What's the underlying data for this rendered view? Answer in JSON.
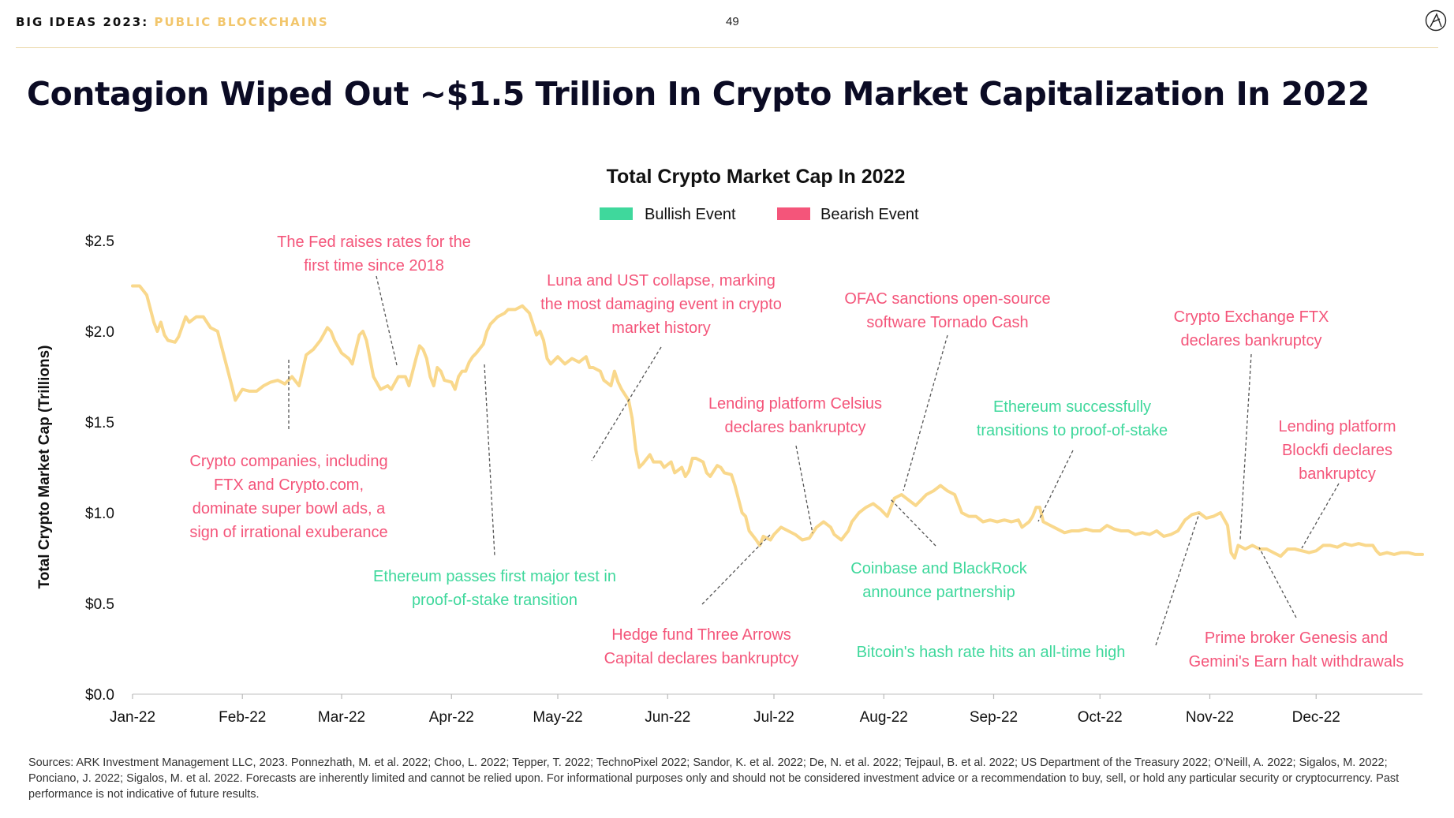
{
  "header": {
    "prefix": "BIG IDEAS 2023:",
    "section": "PUBLIC BLOCKCHAINS",
    "page_number": "49"
  },
  "main_title": "Contagion Wiped Out ~$1.5 Trillion In Crypto Market Capitalization In 2022",
  "colors": {
    "line": "#f9d88c",
    "bullish": "#3fd89c",
    "bearish": "#f4557a",
    "accent": "#f2c66c"
  },
  "chart_data": {
    "type": "line",
    "title": "Total Crypto Market Cap In 2022",
    "xlabel": "",
    "ylabel": "Total Crypto Market Cap (Trillions)",
    "ylim": [
      0,
      2.5
    ],
    "yticks": [
      {
        "value": 0,
        "label": "$0.0"
      },
      {
        "value": 0.5,
        "label": "$0.5"
      },
      {
        "value": 1.0,
        "label": "$1.0"
      },
      {
        "value": 1.5,
        "label": "$1.5"
      },
      {
        "value": 2.0,
        "label": "$2.0"
      },
      {
        "value": 2.5,
        "label": "$2.5"
      }
    ],
    "xticks": [
      {
        "day": 0,
        "label": "Jan-22"
      },
      {
        "day": 31,
        "label": "Feb-22"
      },
      {
        "day": 59,
        "label": "Mar-22"
      },
      {
        "day": 90,
        "label": "Apr-22"
      },
      {
        "day": 120,
        "label": "May-22"
      },
      {
        "day": 151,
        "label": "Jun-22"
      },
      {
        "day": 181,
        "label": "Jul-22"
      },
      {
        "day": 212,
        "label": "Aug-22"
      },
      {
        "day": 243,
        "label": "Sep-22"
      },
      {
        "day": 273,
        "label": "Oct-22"
      },
      {
        "day": 304,
        "label": "Nov-22"
      },
      {
        "day": 334,
        "label": "Dec-22"
      }
    ],
    "xlim": [
      0,
      364
    ],
    "legend": [
      {
        "label": "Bullish Event",
        "kind": "bullish"
      },
      {
        "label": "Bearish Event",
        "kind": "bearish"
      }
    ],
    "series": [
      {
        "name": "Total Crypto Market Cap",
        "points": [
          [
            0,
            2.25
          ],
          [
            2,
            2.25
          ],
          [
            4,
            2.2
          ],
          [
            6,
            2.05
          ],
          [
            7,
            2.0
          ],
          [
            8,
            2.05
          ],
          [
            9,
            1.98
          ],
          [
            10,
            1.95
          ],
          [
            12,
            1.94
          ],
          [
            13,
            1.97
          ],
          [
            15,
            2.08
          ],
          [
            16,
            2.05
          ],
          [
            18,
            2.08
          ],
          [
            20,
            2.08
          ],
          [
            22,
            2.02
          ],
          [
            24,
            2.0
          ],
          [
            26,
            1.85
          ],
          [
            28,
            1.7
          ],
          [
            29,
            1.62
          ],
          [
            31,
            1.68
          ],
          [
            33,
            1.67
          ],
          [
            35,
            1.67
          ],
          [
            37,
            1.7
          ],
          [
            39,
            1.72
          ],
          [
            41,
            1.73
          ],
          [
            43,
            1.71
          ],
          [
            45,
            1.75
          ],
          [
            47,
            1.7
          ],
          [
            49,
            1.87
          ],
          [
            51,
            1.9
          ],
          [
            53,
            1.95
          ],
          [
            55,
            2.02
          ],
          [
            56,
            2.0
          ],
          [
            57,
            1.95
          ],
          [
            59,
            1.88
          ],
          [
            61,
            1.85
          ],
          [
            62,
            1.82
          ],
          [
            63,
            1.9
          ],
          [
            64,
            1.98
          ],
          [
            65,
            2.0
          ],
          [
            66,
            1.95
          ],
          [
            68,
            1.75
          ],
          [
            70,
            1.68
          ],
          [
            72,
            1.7
          ],
          [
            73,
            1.68
          ],
          [
            75,
            1.75
          ],
          [
            77,
            1.75
          ],
          [
            78,
            1.7
          ],
          [
            80,
            1.85
          ],
          [
            81,
            1.92
          ],
          [
            82,
            1.9
          ],
          [
            83,
            1.85
          ],
          [
            84,
            1.75
          ],
          [
            85,
            1.7
          ],
          [
            86,
            1.8
          ],
          [
            87,
            1.78
          ],
          [
            88,
            1.73
          ],
          [
            90,
            1.72
          ],
          [
            91,
            1.68
          ],
          [
            92,
            1.75
          ],
          [
            93,
            1.78
          ],
          [
            94,
            1.78
          ],
          [
            95,
            1.83
          ],
          [
            96,
            1.86
          ],
          [
            97,
            1.88
          ],
          [
            99,
            1.93
          ],
          [
            100,
            2.0
          ],
          [
            101,
            2.04
          ],
          [
            103,
            2.08
          ],
          [
            105,
            2.1
          ],
          [
            106,
            2.12
          ],
          [
            108,
            2.12
          ],
          [
            110,
            2.14
          ],
          [
            112,
            2.1
          ],
          [
            114,
            1.98
          ],
          [
            115,
            2.0
          ],
          [
            116,
            1.95
          ],
          [
            117,
            1.85
          ],
          [
            118,
            1.82
          ],
          [
            120,
            1.86
          ],
          [
            122,
            1.82
          ],
          [
            124,
            1.85
          ],
          [
            126,
            1.83
          ],
          [
            128,
            1.86
          ],
          [
            129,
            1.8
          ],
          [
            130,
            1.8
          ],
          [
            132,
            1.78
          ],
          [
            133,
            1.73
          ],
          [
            135,
            1.7
          ],
          [
            136,
            1.78
          ],
          [
            137,
            1.72
          ],
          [
            138,
            1.68
          ],
          [
            140,
            1.62
          ],
          [
            141,
            1.52
          ],
          [
            142,
            1.35
          ],
          [
            143,
            1.25
          ],
          [
            144,
            1.27
          ],
          [
            146,
            1.32
          ],
          [
            147,
            1.28
          ],
          [
            149,
            1.28
          ],
          [
            150,
            1.25
          ],
          [
            152,
            1.28
          ],
          [
            153,
            1.22
          ],
          [
            155,
            1.25
          ],
          [
            156,
            1.2
          ],
          [
            157,
            1.23
          ],
          [
            158,
            1.3
          ],
          [
            159,
            1.3
          ],
          [
            161,
            1.28
          ],
          [
            162,
            1.22
          ],
          [
            163,
            1.2
          ],
          [
            165,
            1.26
          ],
          [
            166,
            1.25
          ],
          [
            167,
            1.22
          ],
          [
            169,
            1.21
          ],
          [
            170,
            1.15
          ],
          [
            172,
            1.0
          ],
          [
            173,
            0.98
          ],
          [
            174,
            0.9
          ],
          [
            176,
            0.85
          ],
          [
            177,
            0.82
          ],
          [
            178,
            0.87
          ],
          [
            180,
            0.85
          ],
          [
            181,
            0.88
          ],
          [
            183,
            0.92
          ],
          [
            185,
            0.9
          ],
          [
            187,
            0.88
          ],
          [
            189,
            0.85
          ],
          [
            191,
            0.86
          ],
          [
            193,
            0.92
          ],
          [
            195,
            0.95
          ],
          [
            197,
            0.92
          ],
          [
            198,
            0.88
          ],
          [
            200,
            0.85
          ],
          [
            202,
            0.9
          ],
          [
            203,
            0.95
          ],
          [
            205,
            1.0
          ],
          [
            207,
            1.03
          ],
          [
            209,
            1.05
          ],
          [
            211,
            1.02
          ],
          [
            213,
            0.98
          ],
          [
            215,
            1.08
          ],
          [
            217,
            1.1
          ],
          [
            219,
            1.07
          ],
          [
            221,
            1.04
          ],
          [
            223,
            1.08
          ],
          [
            224,
            1.1
          ],
          [
            226,
            1.12
          ],
          [
            228,
            1.15
          ],
          [
            230,
            1.12
          ],
          [
            232,
            1.1
          ],
          [
            234,
            1.0
          ],
          [
            236,
            0.98
          ],
          [
            238,
            0.98
          ],
          [
            240,
            0.95
          ],
          [
            242,
            0.96
          ],
          [
            244,
            0.95
          ],
          [
            246,
            0.96
          ],
          [
            248,
            0.95
          ],
          [
            250,
            0.96
          ],
          [
            251,
            0.92
          ],
          [
            253,
            0.95
          ],
          [
            254,
            0.98
          ],
          [
            255,
            1.03
          ],
          [
            256,
            1.03
          ],
          [
            257,
            0.95
          ],
          [
            259,
            0.93
          ],
          [
            261,
            0.91
          ],
          [
            263,
            0.89
          ],
          [
            265,
            0.9
          ],
          [
            267,
            0.9
          ],
          [
            269,
            0.91
          ],
          [
            271,
            0.9
          ],
          [
            273,
            0.9
          ],
          [
            275,
            0.93
          ],
          [
            277,
            0.91
          ],
          [
            279,
            0.9
          ],
          [
            281,
            0.9
          ],
          [
            283,
            0.88
          ],
          [
            285,
            0.89
          ],
          [
            287,
            0.88
          ],
          [
            289,
            0.9
          ],
          [
            291,
            0.87
          ],
          [
            293,
            0.88
          ],
          [
            295,
            0.9
          ],
          [
            297,
            0.96
          ],
          [
            299,
            0.99
          ],
          [
            301,
            1.0
          ],
          [
            303,
            0.97
          ],
          [
            305,
            0.98
          ],
          [
            307,
            1.0
          ],
          [
            309,
            0.93
          ],
          [
            310,
            0.78
          ],
          [
            311,
            0.75
          ],
          [
            312,
            0.82
          ],
          [
            314,
            0.8
          ],
          [
            316,
            0.82
          ],
          [
            318,
            0.8
          ],
          [
            320,
            0.8
          ],
          [
            322,
            0.78
          ],
          [
            324,
            0.76
          ],
          [
            326,
            0.8
          ],
          [
            328,
            0.8
          ],
          [
            330,
            0.79
          ],
          [
            332,
            0.78
          ],
          [
            334,
            0.79
          ],
          [
            336,
            0.82
          ],
          [
            338,
            0.82
          ],
          [
            340,
            0.81
          ],
          [
            342,
            0.83
          ],
          [
            344,
            0.82
          ],
          [
            346,
            0.83
          ],
          [
            348,
            0.82
          ],
          [
            350,
            0.82
          ],
          [
            351,
            0.79
          ],
          [
            352,
            0.77
          ],
          [
            354,
            0.78
          ],
          [
            356,
            0.77
          ],
          [
            358,
            0.78
          ],
          [
            360,
            0.78
          ],
          [
            362,
            0.77
          ],
          [
            364,
            0.77
          ]
        ]
      }
    ],
    "annotations": [
      {
        "kind": "bearish",
        "lines": [
          "The Fed raises rates for the",
          "first time since 2018"
        ]
      },
      {
        "kind": "bearish",
        "lines": [
          "Crypto companies, including",
          "FTX and Crypto.com,",
          "dominate super bowl ads, a",
          "sign of irrational exuberance"
        ]
      },
      {
        "kind": "bullish",
        "lines": [
          "Ethereum passes first major test in",
          "proof-of-stake transition"
        ]
      },
      {
        "kind": "bearish",
        "lines": [
          "Luna and UST collapse, marking",
          "the most damaging event in crypto",
          "market history"
        ]
      },
      {
        "kind": "bearish",
        "lines": [
          "Hedge fund Three Arrows",
          "Capital declares bankruptcy"
        ]
      },
      {
        "kind": "bearish",
        "lines": [
          "Lending platform Celsius",
          "declares bankruptcy"
        ]
      },
      {
        "kind": "bearish",
        "lines": [
          "OFAC sanctions open-source",
          "software Tornado Cash"
        ]
      },
      {
        "kind": "bullish",
        "lines": [
          "Coinbase and BlackRock",
          "announce partnership"
        ]
      },
      {
        "kind": "bullish",
        "lines": [
          "Ethereum successfully",
          "transitions to proof-of-stake"
        ]
      },
      {
        "kind": "bullish",
        "lines": [
          "Bitcoin's hash rate hits an all-time high"
        ]
      },
      {
        "kind": "bearish",
        "lines": [
          "Crypto Exchange FTX",
          "declares bankruptcy"
        ]
      },
      {
        "kind": "bearish",
        "lines": [
          "Lending platform",
          "Blockfi declares",
          "bankruptcy"
        ]
      },
      {
        "kind": "bearish",
        "lines": [
          "Prime broker Genesis and",
          "Gemini's Earn halt withdrawals"
        ]
      }
    ]
  },
  "footer": {
    "sources": "Sources: ARK Investment Management LLC, 2023. Ponnezhath, M. et al. 2022; Choo, L. 2022; Tepper, T. 2022; TechnoPixel 2022; Sandor, K. et al. 2022; De, N. et al. 2022; Tejpaul, B. et al. 2022; US Department of the Treasury 2022; O'Neill, A. 2022; Sigalos, M. 2022; Ponciano, J. 2022; Sigalos, M. et al. 2022. Forecasts are inherently limited and cannot be relied upon. For informational purposes only and should not be considered investment advice or a recommendation to buy, sell, or hold any particular security or cryptocurrency. Past performance is not indicative of future results."
  }
}
